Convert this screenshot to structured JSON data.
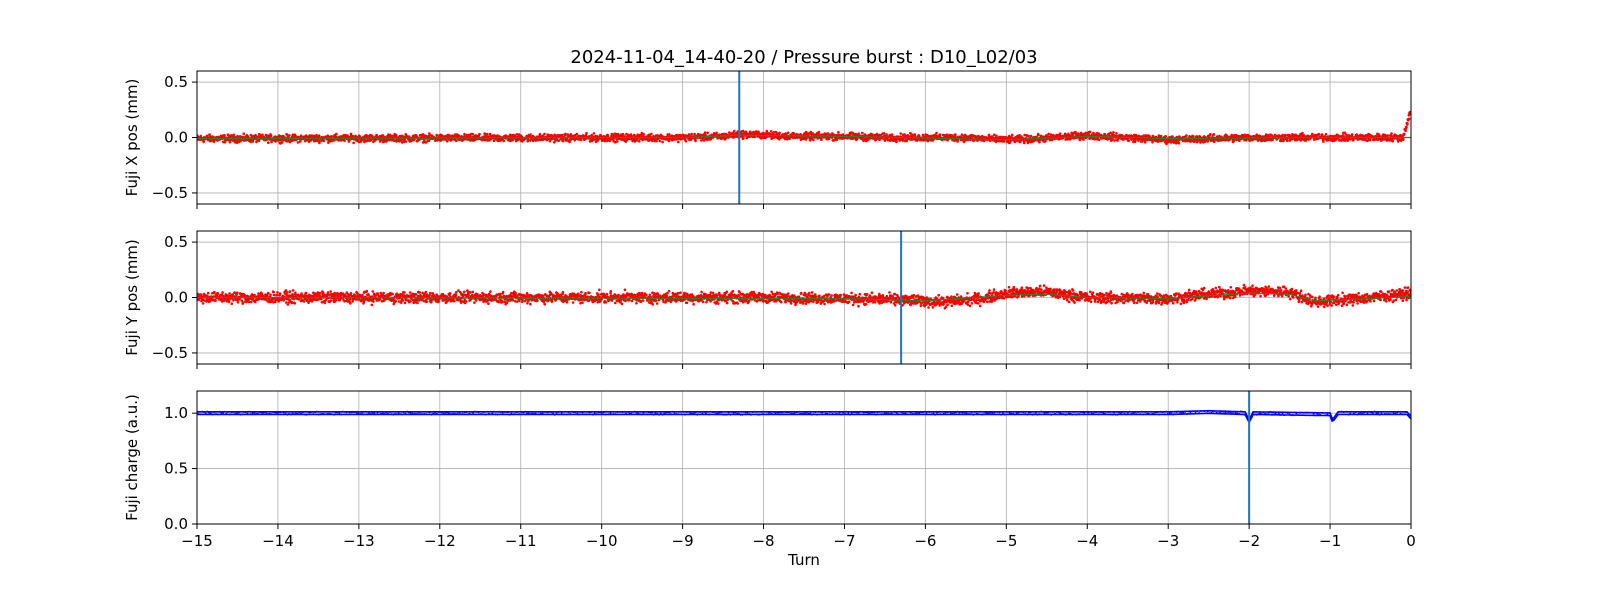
{
  "figure": {
    "title": "2024-11-04_14-40-20 / Pressure burst : D10_L02/03"
  },
  "colors": {
    "position_points": "#ff0000",
    "trend_line": "#2e7d32",
    "charge_line": "#0000ff",
    "marker": "#1f77b4",
    "grid": "#b0b0b0"
  },
  "chart_data": [
    {
      "type": "scatter",
      "id": "x-pos",
      "title": "",
      "xlabel": "",
      "ylabel": "Fuji X pos (mm)",
      "xlim": [
        -15,
        0
      ],
      "ylim": [
        -0.6,
        0.6
      ],
      "grid": true,
      "yticks": [
        -0.5,
        0.0,
        0.5
      ],
      "ytick_labels": [
        "−0.5",
        "0.0",
        "0.5"
      ],
      "marker_x": -8.3,
      "series": [
        {
          "kind": "points",
          "noise_halfwidth": 0.04,
          "baseline": [
            [
              -15,
              -0.01
            ],
            [
              -9,
              0.0
            ],
            [
              -8.5,
              0.01
            ],
            [
              -8.3,
              0.03
            ],
            [
              -7.5,
              0.01
            ],
            [
              -7,
              0.01
            ],
            [
              -6.5,
              0.0
            ],
            [
              -5.5,
              0.0
            ],
            [
              -5.0,
              -0.02
            ],
            [
              -4.6,
              -0.01
            ],
            [
              -4.0,
              0.02
            ],
            [
              -3.5,
              0.0
            ],
            [
              -3.0,
              -0.02
            ],
            [
              -2.5,
              -0.01
            ],
            [
              -2.0,
              0.0
            ],
            [
              -1.0,
              0.0
            ],
            [
              -0.1,
              0.0
            ],
            [
              0,
              0.25
            ]
          ]
        },
        {
          "kind": "trend",
          "baseline": [
            [
              -15,
              -0.01
            ],
            [
              -9,
              0.0
            ],
            [
              -8.3,
              0.02
            ],
            [
              -7,
              0.01
            ],
            [
              -5,
              -0.02
            ],
            [
              -4,
              0.01
            ],
            [
              -3,
              -0.01
            ],
            [
              -1,
              0.0
            ],
            [
              0,
              0.0
            ]
          ]
        }
      ]
    },
    {
      "type": "scatter",
      "id": "y-pos",
      "title": "",
      "xlabel": "",
      "ylabel": "Fuji Y pos (mm)",
      "xlim": [
        -15,
        0
      ],
      "ylim": [
        -0.6,
        0.6
      ],
      "grid": true,
      "yticks": [
        -0.5,
        0.0,
        0.5
      ],
      "ytick_labels": [
        "−0.5",
        "0.0",
        "0.5"
      ],
      "marker_x": -6.3,
      "series": [
        {
          "kind": "points",
          "noise_halfwidth": 0.06,
          "baseline": [
            [
              -15,
              0.0
            ],
            [
              -8,
              0.0
            ],
            [
              -7,
              -0.01
            ],
            [
              -6.3,
              -0.02
            ],
            [
              -5.8,
              -0.04
            ],
            [
              -5.3,
              -0.01
            ],
            [
              -5.0,
              0.04
            ],
            [
              -4.5,
              0.05
            ],
            [
              -4.0,
              0.0
            ],
            [
              -3.0,
              -0.01
            ],
            [
              -2.5,
              0.03
            ],
            [
              -2.0,
              0.06
            ],
            [
              -1.5,
              0.05
            ],
            [
              -1.2,
              -0.04
            ],
            [
              -0.5,
              0.0
            ],
            [
              0,
              0.04
            ]
          ]
        },
        {
          "kind": "trend",
          "baseline": [
            [
              -15,
              0.0
            ],
            [
              -7,
              -0.01
            ],
            [
              -6,
              -0.03
            ],
            [
              -5,
              0.02
            ],
            [
              -4.5,
              0.03
            ],
            [
              -4,
              0.0
            ],
            [
              -3,
              -0.01
            ],
            [
              -2,
              0.04
            ],
            [
              -1.5,
              0.03
            ],
            [
              -1.2,
              -0.03
            ],
            [
              -0.5,
              -0.01
            ],
            [
              0,
              0.01
            ]
          ]
        }
      ]
    },
    {
      "type": "line",
      "id": "charge",
      "title": "",
      "xlabel": "Turn",
      "ylabel": "Fuji charge (a.u.)",
      "xlim": [
        -15,
        0
      ],
      "ylim": [
        0.0,
        1.2
      ],
      "grid": true,
      "yticks": [
        0.0,
        0.5,
        1.0
      ],
      "ytick_labels": [
        "0.0",
        "0.5",
        "1.0"
      ],
      "xticks": [
        -15,
        -14,
        -13,
        -12,
        -11,
        -10,
        -9,
        -8,
        -7,
        -6,
        -5,
        -4,
        -3,
        -2,
        -1,
        0
      ],
      "xtick_labels": [
        "−15",
        "−14",
        "−13",
        "−12",
        "−11",
        "−10",
        "−9",
        "−8",
        "−7",
        "−6",
        "−5",
        "−4",
        "−3",
        "−2",
        "−1",
        "0"
      ],
      "marker_x": -2.0,
      "series": [
        {
          "kind": "band",
          "baseline": [
            [
              -15,
              1.0
            ],
            [
              -3.0,
              1.0
            ],
            [
              -2.5,
              1.01
            ],
            [
              -2.05,
              1.0
            ],
            [
              -2.0,
              0.93
            ],
            [
              -1.95,
              1.0
            ],
            [
              -1.0,
              0.99
            ],
            [
              -0.97,
              0.93
            ],
            [
              -0.9,
              1.0
            ],
            [
              -0.05,
              1.0
            ],
            [
              0,
              0.96
            ]
          ]
        }
      ]
    }
  ]
}
